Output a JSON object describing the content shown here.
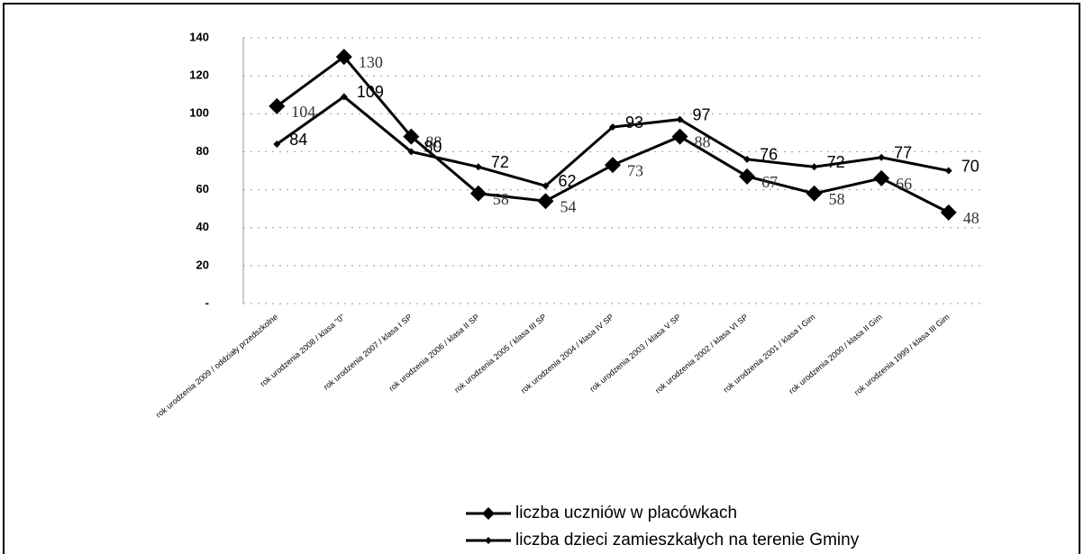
{
  "chart_data": {
    "type": "line",
    "categories": [
      "rok urodzenia 2009 / oddziały przedszkolne",
      "rok urodzenia 2008 / klasa \"0\"",
      "rok urodzenia 2007 / klasa I SP",
      "rok urodzenia 2006 / klasa II SP",
      "rok urodzenia 2005 / klasa III SP",
      "rok urodzenia 2004 / klasa IV SP",
      "rok urodzenia 2003 / klasa V SP",
      "rok urodzenia 2002 / klasa VI SP",
      "rok urodzenia 2001 / klasa I Gim",
      "rok urodzenia 2000 / klasa II Gim",
      "rok urodzenia 1999 / klasa III Gim"
    ],
    "series": [
      {
        "name": "liczba uczniów w placówkach",
        "color": "#000000",
        "marker": "diamond",
        "values": [
          104,
          130,
          88,
          58,
          54,
          73,
          88,
          67,
          58,
          66,
          48
        ]
      },
      {
        "name": "liczba dzieci zamieszkałych na terenie Gminy",
        "color": "#000000",
        "marker": "small",
        "values": [
          84,
          109,
          80,
          72,
          62,
          93,
          97,
          76,
          72,
          77,
          70
        ]
      }
    ],
    "ylim": [
      0,
      140
    ],
    "yticks": [
      {
        "value": 0,
        "label": "-"
      },
      20,
      40,
      60,
      80,
      100,
      120,
      140
    ],
    "grid": true,
    "legend": "bottom"
  }
}
